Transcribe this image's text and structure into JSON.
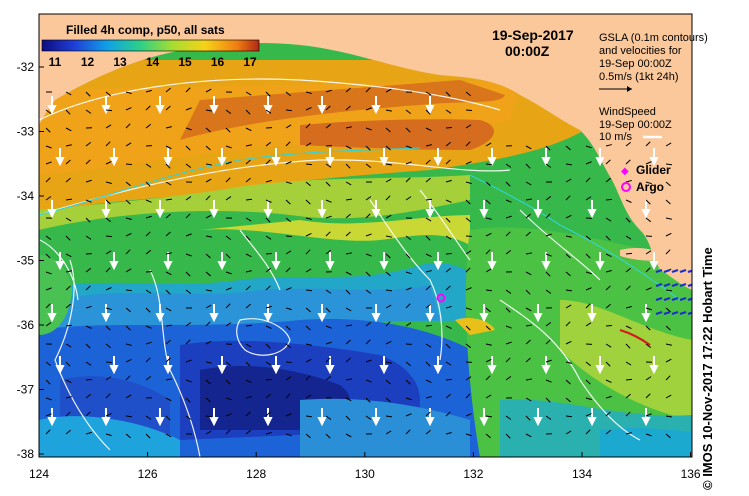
{
  "map": {
    "colorbar_title": "Filled 4h comp, p50, all sats",
    "colorbar_ticks": [
      "11",
      "12",
      "13",
      "14",
      "15",
      "16",
      "17"
    ],
    "date": "19-Sep-2017",
    "time": "00:00Z",
    "legend_lines": [
      "GSLA (0.1m contours)",
      "and velocities for",
      "19-Sep 00:00Z",
      "0.5m/s (1kt 24h)"
    ],
    "wind_lines": [
      "WindSpeed",
      "19-Sep 00:00Z",
      "10 m/s"
    ],
    "glider_label": "Glider",
    "argo_label": "Argo",
    "credit": "© IMOS 10-Nov-2017 17:22 Hobart Time",
    "lat_ticks": [
      "-32",
      "-33",
      "-34",
      "-35",
      "-36",
      "-37",
      "-38"
    ],
    "lon_ticks": [
      "124",
      "126",
      "128",
      "130",
      "132",
      "134",
      "136"
    ],
    "colors": {
      "land": "#fbc89b",
      "contour": "#ffffff",
      "marker": "#ff00ff",
      "scale": [
        "#1a1a8f",
        "#1f47d6",
        "#1e9be0",
        "#3fc23b",
        "#a8d63a",
        "#f5c518",
        "#f08a1a",
        "#c0392b"
      ]
    }
  }
}
